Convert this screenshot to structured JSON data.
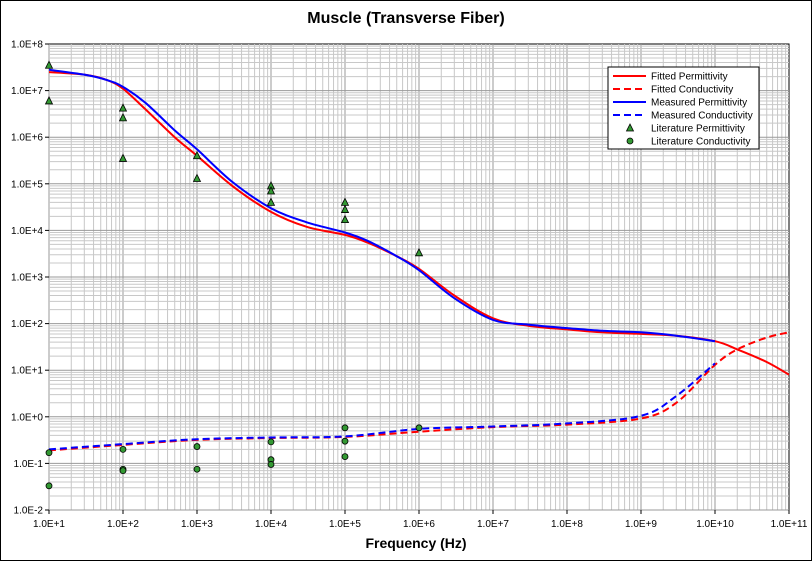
{
  "chart_data": {
    "type": "line",
    "title": "Muscle (Transverse Fiber)",
    "xlabel": "Frequency (Hz)",
    "ylabel": "",
    "x_scale": "log",
    "y_scale": "log",
    "xlim": [
      10,
      100000000000
    ],
    "ylim": [
      0.01,
      100000000
    ],
    "grid": true,
    "legend_position": "top-right",
    "x_tick_labels": [
      "1.0E+1",
      "1.0E+2",
      "1.0E+3",
      "1.0E+4",
      "1.0E+5",
      "1.0E+6",
      "1.0E+7",
      "1.0E+8",
      "1.0E+9",
      "1.0E+10",
      "1.0E+11"
    ],
    "y_tick_labels": [
      "1.0E-2",
      "1.0E-1",
      "1.0E+0",
      "1.0E+1",
      "1.0E+2",
      "1.0E+3",
      "1.0E+4",
      "1.0E+5",
      "1.0E+6",
      "1.0E+7",
      "1.0E+8"
    ],
    "colors": {
      "fitted": "#ff0000",
      "measured": "#0000ff",
      "literature": "#339933"
    },
    "series": [
      {
        "name": "Fitted Permittivity",
        "style": "solid",
        "color": "#ff0000",
        "x": [
          10,
          30,
          60,
          100,
          200,
          500,
          1000,
          3000,
          10000,
          30000,
          100000,
          200000,
          500000,
          1000000,
          3000000,
          10000000,
          30000000,
          100000000,
          300000000,
          1000000000,
          3000000000,
          10000000000,
          20000000000,
          50000000000,
          100000000000
        ],
        "y": [
          25000000,
          22000000,
          17000000,
          11000000,
          4000000,
          1000000,
          400000,
          90000,
          25000,
          12000,
          8000,
          5500,
          2800,
          1500,
          400,
          130,
          90,
          75,
          65,
          60,
          55,
          42,
          28,
          15,
          8
        ]
      },
      {
        "name": "Fitted Conductivity",
        "style": "dashed",
        "color": "#ff0000",
        "x": [
          10,
          100,
          1000,
          10000,
          100000,
          1000000,
          10000000,
          100000000,
          1000000000,
          3000000000,
          10000000000,
          20000000000,
          50000000000,
          100000000000
        ],
        "y": [
          0.19,
          0.25,
          0.32,
          0.35,
          0.37,
          0.48,
          0.6,
          0.68,
          0.92,
          2.0,
          13,
          28,
          50,
          65
        ]
      },
      {
        "name": "Measured Permittivity",
        "style": "solid",
        "color": "#0000ff",
        "x": [
          10,
          30,
          60,
          100,
          200,
          500,
          1000,
          3000,
          10000,
          30000,
          100000,
          200000,
          500000,
          1000000,
          3000000,
          10000000,
          30000000,
          100000000,
          300000000,
          1000000000,
          3000000000,
          10000000000
        ],
        "y": [
          28000000,
          22000000,
          17000000,
          12000000,
          5500000,
          1400000,
          550000,
          110000,
          30000,
          15000,
          9000,
          6000,
          2800,
          1400,
          350,
          120,
          95,
          80,
          70,
          65,
          55,
          42
        ]
      },
      {
        "name": "Measured Conductivity",
        "style": "dashed",
        "color": "#0000ff",
        "x": [
          10,
          100,
          1000,
          10000,
          100000,
          1000000,
          10000000,
          100000000,
          1000000000,
          3000000000,
          10000000000
        ],
        "y": [
          0.2,
          0.26,
          0.33,
          0.36,
          0.38,
          0.55,
          0.62,
          0.72,
          1.05,
          2.8,
          14
        ]
      },
      {
        "name": "Literature Permittivity",
        "style": "triangle",
        "color": "#339933",
        "x": [
          10,
          10,
          100,
          100,
          100,
          1000,
          1000,
          10000,
          10000,
          10000,
          100000,
          100000,
          100000,
          1000000
        ],
        "y": [
          35000000,
          6000000,
          4200000,
          2600000,
          350000,
          400000,
          130000,
          90000,
          70000,
          40000,
          40000,
          28000,
          17000,
          3300
        ]
      },
      {
        "name": "Literature Conductivity",
        "style": "circle",
        "color": "#339933",
        "x": [
          10,
          10,
          100,
          100,
          100,
          1000,
          1000,
          10000,
          10000,
          10000,
          100000,
          100000,
          100000,
          1000000
        ],
        "y": [
          0.17,
          0.033,
          0.2,
          0.075,
          0.07,
          0.23,
          0.075,
          0.29,
          0.12,
          0.095,
          0.58,
          0.3,
          0.14,
          0.58
        ]
      }
    ]
  }
}
